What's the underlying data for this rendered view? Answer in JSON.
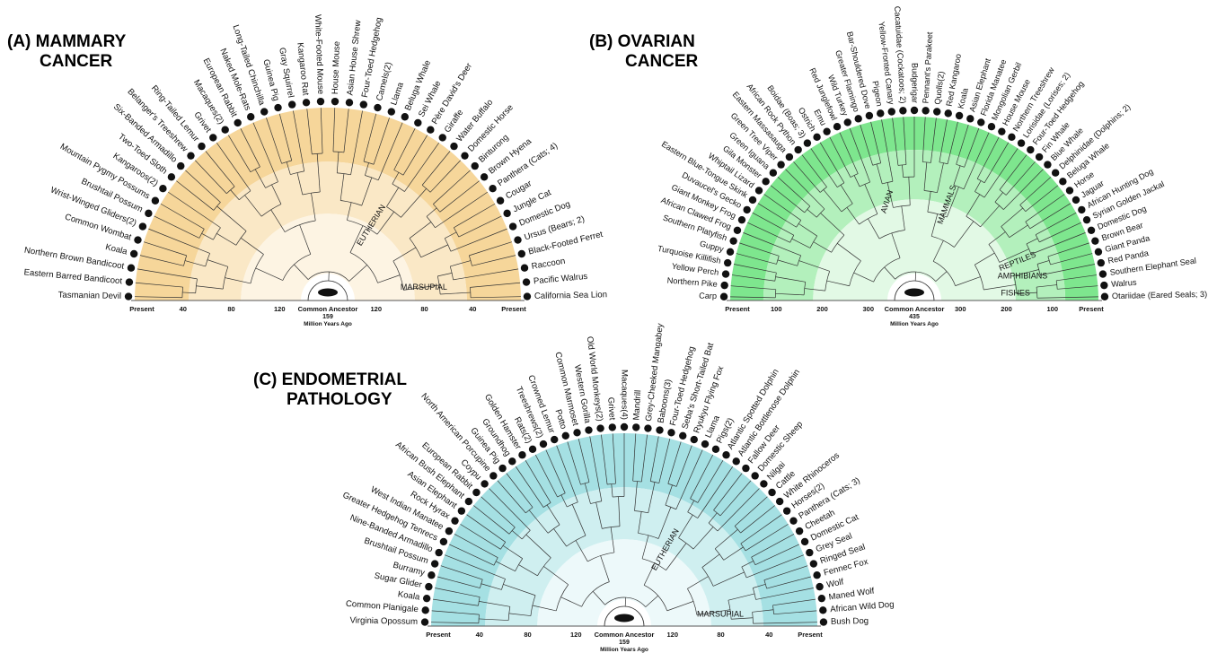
{
  "panels": [
    {
      "id": "A",
      "title_line1": "(A) MAMMARY",
      "title_line2": "CANCER",
      "colors": {
        "outer": "#f6d69a",
        "mid": "#fae8c6",
        "inner": "#fdf4e3"
      },
      "left_ticks": [
        "Present",
        "40",
        "80",
        "120"
      ],
      "right_ticks": [
        "120",
        "80",
        "40",
        "Present"
      ],
      "center_label": "Common Ancestor",
      "center_value": "159",
      "axis_caption": "Million Years Ago",
      "clade_labels": [
        "MARSUPIAL",
        "EUTHERIAN"
      ],
      "species": [
        "Tasmanian Devil",
        "Eastern Barred Bandicoot",
        "Northern Brown Bandicoot",
        "Koala",
        "Common Wombat",
        "Wrist-Winged Gliders(2)",
        "Brushtail Possum",
        "Mountain Pygmy Possums",
        "Kangaroos(2)",
        "Two-Toed Sloth",
        "Six-Banded Armadillo",
        "Belanger's Treeshrew",
        "Ring-Tailed Lemur",
        "Grivet",
        "Macaques(2)",
        "European Rabbit",
        "Naked Mole-Rats",
        "Long-Tailed Chinchilla",
        "Guinea Pig",
        "Gray Squirrel",
        "Kangaroo Rat",
        "White-Footed Mouse",
        "House Mouse",
        "Asian House Shrew",
        "Four-Toed Hedgehog",
        "Camels(2)",
        "Llama",
        "Beluga Whale",
        "Sei Whale",
        "Père David's Deer",
        "Giraffe",
        "Water Buffalo",
        "Domestic Horse",
        "Binturong",
        "Brown Hyena",
        "Panthera (Cats; 4)",
        "Cougar",
        "Jungle Cat",
        "Domestic Dog",
        "Ursus (Bears; 2)",
        "Black-Footed Ferret",
        "Raccoon",
        "Pacific Walrus",
        "California Sea Lion"
      ]
    },
    {
      "id": "B",
      "title_line1": "(B) OVARIAN",
      "title_line2": "CANCER",
      "colors": {
        "outer": "#7ee68e",
        "mid": "#b3f0bc",
        "inner": "#e2f9e5"
      },
      "left_ticks": [
        "Present",
        "100",
        "200",
        "300"
      ],
      "right_ticks": [
        "300",
        "200",
        "100",
        "Present"
      ],
      "center_label": "Common Ancestor",
      "center_value": "435",
      "axis_caption": "Million Years Ago",
      "clade_labels": [
        "FISHES",
        "AMPHIBIANS",
        "REPTILES",
        "AVIAN",
        "MAMMALS"
      ],
      "species": [
        "Carp",
        "Northern Pike",
        "Yellow Perch",
        "Turquoise Killifish",
        "Guppy",
        "Southern Platyfish",
        "African Clawed Frog",
        "Giant Monkey Frog",
        "Duvaucel's Gecko",
        "Eastern Blue-Tongue Skink",
        "Whiptail Lizard",
        "Gila Monster",
        "Green Iguana",
        "Green Tree Viper",
        "Eastern Massasauga",
        "African Rock Python",
        "Boidae (Boas; 3)",
        "Ostrich",
        "Emu",
        "Red Junglefowl",
        "Wild Turkey",
        "Greater Flamingo",
        "Bar-Shouldered Dove",
        "Pigeon",
        "Yellow-Fronted Canary",
        "Cacatuidae (Cockatoos; 2)",
        "Budgerigar",
        "Pennant's Parakeet",
        "Quolls(2)",
        "Red Kangaroo",
        "Koala",
        "Asian Elephant",
        "Florida Manatee",
        "Mongolian Gerbil",
        "House Mouse",
        "Northern Treeshrew",
        "Lorisidae (Lorises; 2)",
        "Four-Toed Hedgehog",
        "Fin Whale",
        "Blue Whale",
        "Delphinidae (Dolphins; 2)",
        "Beluga Whale",
        "Horse",
        "Jaguar",
        "African Hunting Dog",
        "Syrian Golden Jackal",
        "Domestic Dog",
        "Brown Bear",
        "Giant Panda",
        "Red Panda",
        "Southern Elephant Seal",
        "Walrus",
        "Otariidae (Eared Seals; 3)"
      ]
    },
    {
      "id": "C",
      "title_line1": "(C) ENDOMETRIAL",
      "title_line2": "PATHOLOGY",
      "colors": {
        "outer": "#a5e0e3",
        "mid": "#cfeff0",
        "inner": "#edf9fa"
      },
      "left_ticks": [
        "Present",
        "40",
        "80",
        "120"
      ],
      "right_ticks": [
        "120",
        "80",
        "40",
        "Present"
      ],
      "center_label": "Common Ancestor",
      "center_value": "159",
      "axis_caption": "Million Years Ago",
      "clade_labels": [
        "MARSUPIAL",
        "EUTHERIAN"
      ],
      "species": [
        "Virginia Opossum",
        "Common Planigale",
        "Koala",
        "Sugar Glider",
        "Burramy",
        "Brushtail Possum",
        "Nine-Banded Armadillo",
        "Greater Hedgehog Tenrecs",
        "West Indian Manatee",
        "Rock Hyrax",
        "Asian Elephant",
        "African Bush Elephant",
        "European Rabbit",
        "Coypu",
        "North American Porcupine",
        "Guinea Pig",
        "Groundhog",
        "Golden Hamster",
        "Rats(2)",
        "Treeshrews(2)",
        "Crowned Lemur",
        "Potto",
        "Common Marmoset",
        "Western Gorilla",
        "Old World Monkeys(2)",
        "Grivet",
        "Macaques(4)",
        "Mandrill",
        "Grey-Cheeked Mangabey",
        "Baboons(3)",
        "Four-Toed Hedgehog",
        "Seba's Short-Tailed Bat",
        "Ryukyu Flying Fox",
        "Llama",
        "Pigs(2)",
        "Atlantic Spotted Dolphin",
        "Atlantic Bottlenose Dolphin",
        "Fallow Deer",
        "Domestic Sheep",
        "Nilgai",
        "Cattle",
        "White Rhinoceros",
        "Horses(2)",
        "Panthera (Cats; 3)",
        "Cheetah",
        "Domestic Cat",
        "Grey Seal",
        "Ringed Seal",
        "Fennec Fox",
        "Wolf",
        "Maned Wolf",
        "African Wild Dog",
        "Bush Dog"
      ]
    }
  ]
}
